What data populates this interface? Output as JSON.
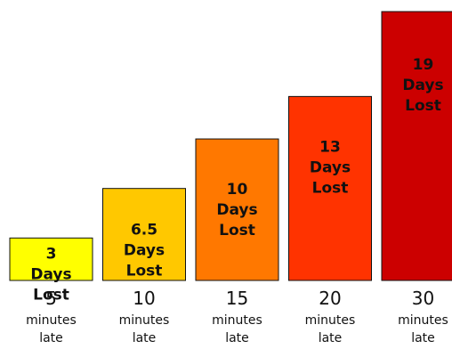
{
  "chart_data": {
    "type": "bar",
    "categories": [
      "5",
      "10",
      "15",
      "20",
      "30"
    ],
    "category_sublines": [
      [
        "minutes",
        "late"
      ],
      [
        "minutes",
        "late"
      ],
      [
        "minutes",
        "late"
      ],
      [
        "minutes",
        "late"
      ],
      [
        "minutes",
        "late"
      ]
    ],
    "values": [
      3,
      6.5,
      10,
      13,
      19
    ],
    "bar_labels": [
      [
        "3",
        "Days",
        "Lost"
      ],
      [
        "6.5",
        "Days",
        "Lost"
      ],
      [
        "10",
        "Days",
        "Lost"
      ],
      [
        "13",
        "Days",
        "Lost"
      ],
      [
        "19",
        "Days",
        "Lost"
      ]
    ],
    "colors": [
      "#ffff00",
      "#ffc800",
      "#ff7800",
      "#ff3300",
      "#cc0000"
    ],
    "title": "",
    "xlabel": "",
    "ylabel": "",
    "ylim": [
      0,
      19
    ],
    "grid": false,
    "legend": "none"
  }
}
